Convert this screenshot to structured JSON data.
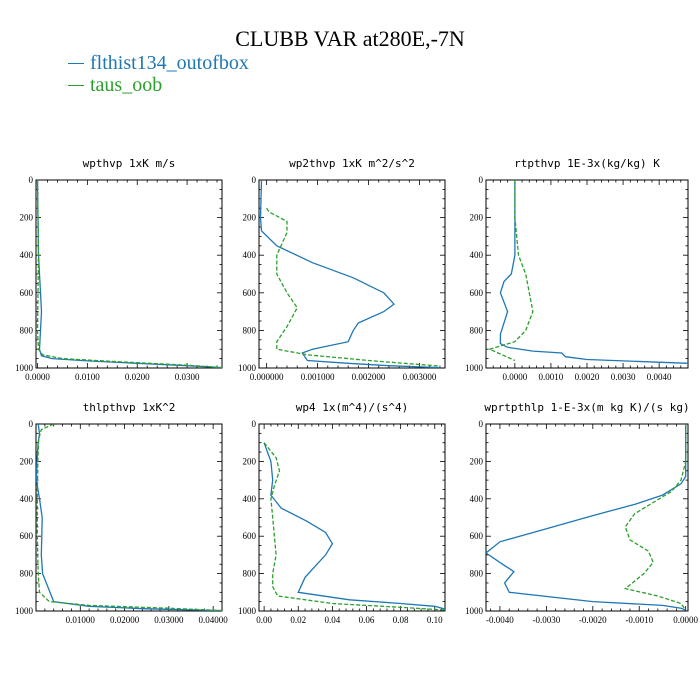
{
  "title": "CLUBB VAR at280E,-7N",
  "legend": [
    {
      "label": "flthist134_outofbox",
      "color": "#1f77b4"
    },
    {
      "label": "taus_oob",
      "color": "#2ca02c"
    }
  ],
  "chart_data": [
    {
      "type": "line",
      "title": "wpthvp  1xK m/s",
      "xlim": [
        -0.0003,
        0.037
      ],
      "ylim": [
        1000,
        0
      ],
      "xticks": [
        0.0,
        0.01,
        0.02,
        0.03
      ],
      "xtick_labels": [
        "0.0000",
        "0.0100",
        "0.0200",
        "0.0300"
      ],
      "yticks": [
        0,
        200,
        400,
        600,
        800,
        1000
      ],
      "ytick_labels": [
        "0",
        "200",
        "400",
        "600",
        "800",
        "1000"
      ],
      "series": [
        {
          "name": "flthist134_outofbox",
          "color": "#1f77b4",
          "dash": "",
          "x": [
            0.0,
            0.0001,
            0.0002,
            0.0004,
            0.0006,
            0.0008,
            0.0006,
            0.0004,
            0.0008,
            0.003,
            0.01,
            0.02,
            0.03,
            0.037
          ],
          "y": [
            0,
            200,
            400,
            500,
            600,
            700,
            800,
            900,
            935,
            950,
            962,
            975,
            988,
            998
          ]
        },
        {
          "name": "taus_oob",
          "color": "#2ca02c",
          "dash": "4,2",
          "x": [
            0.0,
            0.0001,
            0.0002,
            0.0001,
            0.0,
            0.0002,
            0.001,
            0.005,
            0.015,
            0.03,
            0.037
          ],
          "y": [
            0,
            200,
            400,
            600,
            800,
            900,
            930,
            950,
            965,
            985,
            998
          ]
        }
      ]
    },
    {
      "type": "line",
      "title": "wp2thvp  1xK m^2/s^2",
      "xlim": [
        -0.00015,
        0.0035
      ],
      "ylim": [
        1000,
        0
      ],
      "xticks": [
        0.0,
        0.001,
        0.002,
        0.003
      ],
      "xtick_labels": [
        "0.000000",
        "0.001000",
        "0.002000",
        "0.003000"
      ],
      "yticks": [
        0,
        200,
        400,
        600,
        800,
        1000
      ],
      "ytick_labels": [
        "0",
        "200",
        "400",
        "600",
        "800",
        "1000"
      ],
      "series": [
        {
          "name": "flthist134_outofbox",
          "color": "#1f77b4",
          "dash": "",
          "x": [
            -0.0001,
            -0.00012,
            -0.0001,
            0.0002,
            0.0009,
            0.0017,
            0.0023,
            0.0025,
            0.0023,
            0.0018,
            0.0017,
            0.0016,
            0.0009,
            0.0007,
            0.0008,
            0.0016,
            0.0024,
            0.0034
          ],
          "y": [
            0,
            200,
            270,
            350,
            440,
            520,
            600,
            660,
            700,
            760,
            800,
            860,
            900,
            920,
            960,
            975,
            988,
            998
          ]
        },
        {
          "name": "taus_oob",
          "color": "#2ca02c",
          "dash": "4,2",
          "x": [
            0.0,
            5e-05,
            0.0004,
            0.0004,
            0.0003,
            0.0002,
            0.0002,
            0.0004,
            0.0006,
            0.0004,
            0.0002,
            0.0002,
            0.0008,
            0.002,
            0.0034
          ],
          "y": [
            150,
            170,
            220,
            280,
            340,
            400,
            500,
            600,
            680,
            780,
            860,
            900,
            930,
            960,
            990
          ]
        }
      ]
    },
    {
      "type": "line",
      "title": "rtpthvp  1E-3x(kg/kg) K",
      "xlim": [
        -0.0008,
        0.0048
      ],
      "ylim": [
        1000,
        0
      ],
      "xticks": [
        0.0,
        0.001,
        0.002,
        0.003,
        0.004
      ],
      "xtick_labels": [
        "0.0000",
        "0.0010",
        "0.0020",
        "0.0030",
        "0.0040"
      ],
      "yticks": [
        0,
        200,
        400,
        600,
        800,
        1000
      ],
      "ytick_labels": [
        "0",
        "200",
        "400",
        "600",
        "800",
        "1000"
      ],
      "series": [
        {
          "name": "flthist134_outofbox",
          "color": "#1f77b4",
          "dash": "",
          "x": [
            0.0,
            0.0,
            0.0,
            -0.0001,
            -0.0003,
            -0.0004,
            -0.0003,
            -0.0002,
            -0.0003,
            -0.0004,
            -0.0004,
            -0.0002,
            0.0005,
            0.0013,
            0.0014,
            0.002,
            0.0048
          ],
          "y": [
            0,
            200,
            400,
            500,
            540,
            600,
            650,
            700,
            760,
            820,
            870,
            890,
            910,
            920,
            940,
            955,
            975
          ]
        },
        {
          "name": "taus_oob",
          "color": "#2ca02c",
          "dash": "4,2",
          "x": [
            0.0,
            0.0,
            0.0001,
            0.0003,
            0.0004,
            0.0005,
            0.0003,
            0.0,
            -0.0007,
            0.0
          ],
          "y": [
            0,
            200,
            400,
            500,
            600,
            700,
            800,
            860,
            900,
            960
          ]
        }
      ]
    },
    {
      "type": "line",
      "title": "thlpthvp  1xK^2",
      "xlim": [
        0.0,
        0.042
      ],
      "ylim": [
        1000,
        0
      ],
      "xticks": [
        0.01,
        0.02,
        0.03,
        0.04
      ],
      "xtick_labels": [
        "0.01000",
        "0.02000",
        "0.03000",
        "0.04000"
      ],
      "yticks": [
        0,
        200,
        400,
        600,
        800,
        1000
      ],
      "ytick_labels": [
        "0",
        "200",
        "400",
        "600",
        "800",
        "1000"
      ],
      "series": [
        {
          "name": "flthist134_outofbox",
          "color": "#1f77b4",
          "dash": "",
          "x": [
            0.0005,
            0.0008,
            0.0005,
            0.0002,
            0.0001,
            0.0008,
            0.0014,
            0.0013,
            0.0012,
            0.0015,
            0.004,
            0.012,
            0.025,
            0.042
          ],
          "y": [
            0,
            50,
            100,
            200,
            300,
            400,
            500,
            600,
            700,
            800,
            950,
            975,
            988,
            998
          ]
        },
        {
          "name": "taus_oob",
          "color": "#2ca02c",
          "dash": "4,2",
          "x": [
            0.004,
            0.0012,
            0.0006,
            0.0004,
            0.0003,
            0.0003,
            0.0005,
            0.0008,
            0.003,
            0.012,
            0.03,
            0.042
          ],
          "y": [
            0,
            30,
            80,
            200,
            400,
            600,
            800,
            900,
            950,
            970,
            985,
            998
          ]
        }
      ]
    },
    {
      "type": "line",
      "title": "wp4  1x(m^4)/(s^4)",
      "xlim": [
        -0.003,
        0.106
      ],
      "ylim": [
        1000,
        0
      ],
      "xticks": [
        0.0,
        0.02,
        0.04,
        0.06,
        0.08,
        0.1
      ],
      "xtick_labels": [
        "0.00",
        "0.02",
        "0.04",
        "0.06",
        "0.08",
        "0.10"
      ],
      "yticks": [
        0,
        200,
        400,
        600,
        800,
        1000
      ],
      "ytick_labels": [
        "0",
        "200",
        "400",
        "600",
        "800",
        "1000"
      ],
      "series": [
        {
          "name": "flthist134_outofbox",
          "color": "#1f77b4",
          "dash": "",
          "x": [
            0.0,
            0.002,
            0.004,
            0.005,
            0.004,
            0.01,
            0.025,
            0.036,
            0.04,
            0.036,
            0.03,
            0.024,
            0.02,
            0.05,
            0.08,
            0.1,
            0.106
          ],
          "y": [
            100,
            150,
            200,
            300,
            380,
            450,
            520,
            580,
            640,
            700,
            760,
            820,
            900,
            940,
            960,
            975,
            990
          ]
        },
        {
          "name": "taus_oob",
          "color": "#2ca02c",
          "dash": "4,2",
          "x": [
            0.0,
            0.007,
            0.009,
            0.006,
            0.004,
            0.005,
            0.006,
            0.007,
            0.005,
            0.005,
            0.008,
            0.04,
            0.08,
            0.106
          ],
          "y": [
            100,
            180,
            250,
            330,
            400,
            500,
            600,
            700,
            800,
            870,
            920,
            960,
            980,
            995
          ]
        }
      ]
    },
    {
      "type": "line",
      "title": "wprtpthlp  1-E-3x(m kg K)/(s kg)",
      "xlim": [
        -0.0043,
        5e-05
      ],
      "ylim": [
        1000,
        0
      ],
      "xticks": [
        -0.004,
        -0.003,
        -0.002,
        -0.001,
        0.0
      ],
      "xtick_labels": [
        "-0.0040",
        "-0.0030",
        "-0.0020",
        "-0.0010",
        "0.0000"
      ],
      "yticks": [
        0,
        200,
        400,
        600,
        800,
        1000
      ],
      "ytick_labels": [
        "0",
        "200",
        "400",
        "600",
        "800",
        "1000"
      ],
      "series": [
        {
          "name": "flthist134_outofbox",
          "color": "#1f77b4",
          "dash": "",
          "x": [
            0.0,
            0.0,
            0.0,
            -0.0001,
            -0.0005,
            -0.0011,
            -0.002,
            -0.003,
            -0.004,
            -0.0043,
            -0.004,
            -0.0037,
            -0.0038,
            -0.0039,
            -0.0038,
            -0.002,
            -0.0005,
            -0.0001,
            0.0
          ],
          "y": [
            0,
            200,
            280,
            320,
            380,
            430,
            490,
            560,
            630,
            690,
            740,
            790,
            820,
            850,
            900,
            950,
            970,
            985,
            995
          ]
        },
        {
          "name": "taus_oob",
          "color": "#2ca02c",
          "dash": "4,2",
          "x": [
            0.0,
            0.0,
            -0.0001,
            -0.0003,
            -0.0007,
            -0.0011,
            -0.0013,
            -0.0012,
            -0.0008,
            -0.0007,
            -0.0009,
            -0.0013,
            -0.0006,
            -0.0001,
            0.0
          ],
          "y": [
            0,
            200,
            300,
            360,
            420,
            480,
            550,
            620,
            680,
            740,
            800,
            880,
            920,
            960,
            995
          ]
        }
      ]
    }
  ]
}
